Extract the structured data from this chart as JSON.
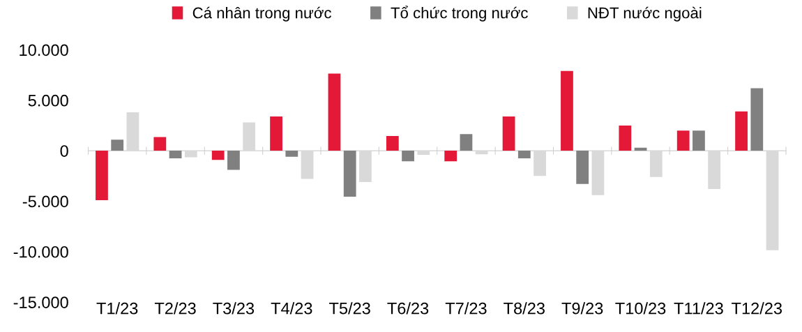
{
  "chart_data": {
    "type": "bar",
    "categories": [
      "T1/23",
      "T2/23",
      "T3/23",
      "T4/23",
      "T5/23",
      "T6/23",
      "T7/23",
      "T8/23",
      "T9/23",
      "T10/23",
      "T11/23",
      "T12/23"
    ],
    "series": [
      {
        "name": "Cá nhân trong nước",
        "color": "#e31937",
        "values": [
          -4900,
          1350,
          -900,
          3400,
          7650,
          1450,
          -1050,
          3400,
          7900,
          2500,
          2000,
          3900
        ]
      },
      {
        "name": "Tổ chức trong nước",
        "color": "#808080",
        "values": [
          1100,
          -750,
          -1900,
          -600,
          -4550,
          -1050,
          1650,
          -750,
          -3300,
          300,
          2000,
          6200
        ]
      },
      {
        "name": "NĐT nước ngoài",
        "color": "#d9d9d9",
        "values": [
          3800,
          -650,
          2800,
          -2800,
          -3100,
          -400,
          -350,
          -2500,
          -4400,
          -2600,
          -3800,
          -9850
        ]
      }
    ],
    "ylim": [
      -15000,
      10000
    ],
    "yticks": [
      {
        "value": -15000,
        "label": "-15.000"
      },
      {
        "value": -10000,
        "label": "-10.000"
      },
      {
        "value": -5000,
        "label": "-5.000"
      },
      {
        "value": 0,
        "label": "0"
      },
      {
        "value": 5000,
        "label": "5.000"
      },
      {
        "value": 10000,
        "label": "10.000"
      }
    ],
    "legend": "top"
  }
}
